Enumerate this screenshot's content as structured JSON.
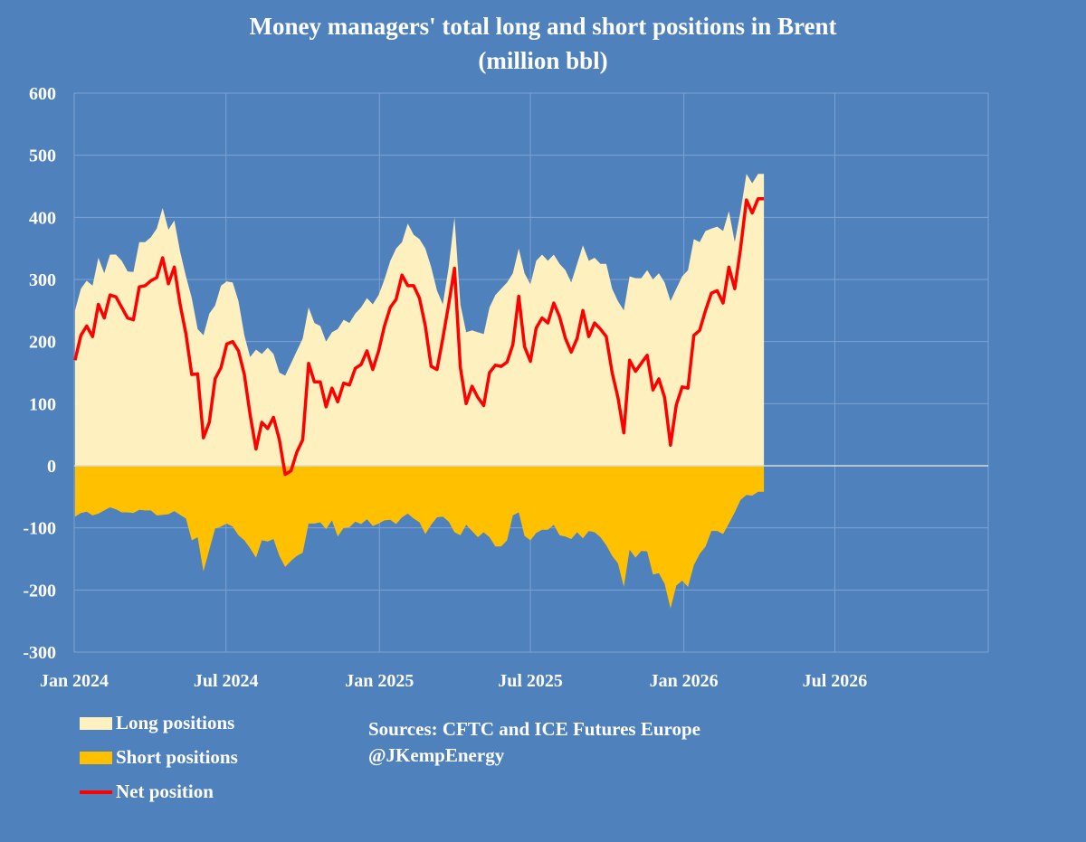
{
  "chart_data": {
    "type": "area",
    "title": "Money managers' total long and short positions in Brent",
    "subtitle": "(million bbl)",
    "ylim": [
      -300,
      600
    ],
    "yticks": [
      600,
      500,
      400,
      300,
      200,
      100,
      0,
      -100,
      -200,
      -300
    ],
    "xlim": [
      "2024-01-01",
      "2027-01-01"
    ],
    "xticks": [
      {
        "date": "2024-01-01",
        "label": "Jan 2024"
      },
      {
        "date": "2024-07-01",
        "label": "Jul 2024"
      },
      {
        "date": "2025-01-01",
        "label": "Jan 2025"
      },
      {
        "date": "2025-07-01",
        "label": "Jul 2025"
      },
      {
        "date": "2026-01-01",
        "label": "Jan 2026"
      },
      {
        "date": "2026-07-01",
        "label": "Jul 2026"
      }
    ],
    "grid": true,
    "legend_placement": "bottom-left",
    "colors": {
      "background": "#4f81bd",
      "long": "#fff0c0",
      "short": "#ffc000",
      "net": "#ff0000",
      "grid": "#7fa2d2"
    },
    "x": [
      "2024-01-02",
      "2024-01-09",
      "2024-01-16",
      "2024-01-23",
      "2024-01-30",
      "2024-02-06",
      "2024-02-13",
      "2024-02-20",
      "2024-02-27",
      "2024-03-05",
      "2024-03-12",
      "2024-03-19",
      "2024-03-26",
      "2024-04-02",
      "2024-04-09",
      "2024-04-16",
      "2024-04-23",
      "2024-04-30",
      "2024-05-07",
      "2024-05-14",
      "2024-05-21",
      "2024-05-28",
      "2024-06-04",
      "2024-06-11",
      "2024-06-18",
      "2024-06-25",
      "2024-07-02",
      "2024-07-09",
      "2024-07-16",
      "2024-07-23",
      "2024-07-30",
      "2024-08-06",
      "2024-08-13",
      "2024-08-20",
      "2024-08-27",
      "2024-09-03",
      "2024-09-10",
      "2024-09-17",
      "2024-09-24",
      "2024-10-01",
      "2024-10-08",
      "2024-10-15",
      "2024-10-22",
      "2024-10-29",
      "2024-11-05",
      "2024-11-12",
      "2024-11-19",
      "2024-11-26",
      "2024-12-03",
      "2024-12-10",
      "2024-12-17",
      "2024-12-24",
      "2024-12-31",
      "2025-01-07",
      "2025-01-14",
      "2025-01-21",
      "2025-01-28",
      "2025-02-04",
      "2025-02-11",
      "2025-02-18",
      "2025-02-25",
      "2025-03-04",
      "2025-03-11",
      "2025-03-18",
      "2025-03-25",
      "2025-04-01",
      "2025-04-08",
      "2025-04-15",
      "2025-04-22",
      "2025-04-29",
      "2025-05-06",
      "2025-05-13",
      "2025-05-20",
      "2025-05-27",
      "2025-06-03",
      "2025-06-10",
      "2025-06-17",
      "2025-06-24",
      "2025-07-01",
      "2025-07-08",
      "2025-07-15",
      "2025-07-22",
      "2025-07-29",
      "2025-08-05",
      "2025-08-12",
      "2025-08-19",
      "2025-08-26",
      "2025-09-02",
      "2025-09-09",
      "2025-09-16",
      "2025-09-23",
      "2025-09-30",
      "2025-10-07",
      "2025-10-14",
      "2025-10-21",
      "2025-10-28",
      "2025-11-04",
      "2025-11-11",
      "2025-11-18",
      "2025-11-25",
      "2025-12-02",
      "2025-12-09",
      "2025-12-16",
      "2025-12-23",
      "2025-12-30",
      "2026-01-06",
      "2026-01-13",
      "2026-01-20",
      "2026-01-27",
      "2026-02-03",
      "2026-02-10",
      "2026-02-17",
      "2026-02-24",
      "2026-03-03",
      "2026-03-10",
      "2026-03-17",
      "2026-03-24",
      "2026-03-31",
      "2026-04-07"
    ],
    "series": [
      {
        "name": "Long positions",
        "values": [
          250,
          285,
          298,
          290,
          335,
          310,
          340,
          340,
          330,
          313,
          312,
          360,
          360,
          368,
          382,
          415,
          380,
          395,
          345,
          305,
          270,
          220,
          210,
          245,
          258,
          290,
          297,
          295,
          265,
          210,
          175,
          187,
          180,
          190,
          180,
          150,
          145,
          165,
          185,
          205,
          255,
          230,
          225,
          200,
          215,
          220,
          235,
          230,
          245,
          255,
          270,
          260,
          275,
          300,
          330,
          350,
          360,
          390,
          372,
          365,
          350,
          320,
          282,
          260,
          320,
          400,
          260,
          215,
          218,
          215,
          212,
          255,
          275,
          285,
          295,
          310,
          350,
          310,
          292,
          330,
          340,
          330,
          340,
          325,
          315,
          295,
          325,
          355,
          330,
          335,
          325,
          325,
          285,
          265,
          250,
          305,
          302,
          302,
          315,
          300,
          310,
          295,
          265,
          285,
          305,
          315,
          365,
          360,
          378,
          382,
          385,
          378,
          410,
          360,
          410,
          470,
          455,
          470,
          470
        ]
      },
      {
        "name": "Short positions",
        "values": [
          -82,
          -76,
          -74,
          -80,
          -77,
          -72,
          -67,
          -70,
          -75,
          -75,
          -76,
          -71,
          -72,
          -72,
          -80,
          -79,
          -78,
          -73,
          -79,
          -85,
          -120,
          -115,
          -170,
          -135,
          -101,
          -98,
          -93,
          -98,
          -112,
          -120,
          -133,
          -148,
          -120,
          -122,
          -118,
          -145,
          -163,
          -153,
          -145,
          -140,
          -93,
          -93,
          -91,
          -102,
          -88,
          -114,
          -100,
          -99,
          -90,
          -94,
          -86,
          -97,
          -93,
          -88,
          -87,
          -94,
          -83,
          -77,
          -85,
          -91,
          -110,
          -95,
          -83,
          -82,
          -90,
          -107,
          -112,
          -95,
          -105,
          -115,
          -107,
          -115,
          -130,
          -130,
          -120,
          -80,
          -75,
          -113,
          -120,
          -108,
          -103,
          -103,
          -95,
          -112,
          -114,
          -118,
          -107,
          -117,
          -105,
          -107,
          -115,
          -128,
          -145,
          -157,
          -195,
          -135,
          -148,
          -137,
          -138,
          -175,
          -173,
          -190,
          -230,
          -193,
          -185,
          -195,
          -160,
          -142,
          -130,
          -105,
          -105,
          -110,
          -93,
          -75,
          -55,
          -47,
          -48,
          -42,
          -42
        ]
      },
      {
        "name": "Net position",
        "values": [
          170,
          210,
          225,
          208,
          260,
          238,
          275,
          272,
          255,
          238,
          235,
          288,
          290,
          298,
          303,
          335,
          293,
          320,
          260,
          212,
          147,
          148,
          45,
          70,
          140,
          158,
          196,
          200,
          185,
          147,
          82,
          27,
          70,
          60,
          78,
          42,
          -14,
          -8,
          22,
          42,
          165,
          135,
          135,
          95,
          125,
          103,
          133,
          130,
          157,
          163,
          185,
          155,
          185,
          225,
          255,
          268,
          307,
          290,
          290,
          270,
          225,
          160,
          155,
          205,
          260,
          318,
          158,
          100,
          128,
          110,
          97,
          150,
          162,
          160,
          167,
          195,
          273,
          192,
          168,
          222,
          238,
          230,
          262,
          240,
          205,
          183,
          205,
          250,
          208,
          230,
          220,
          208,
          150,
          110,
          53,
          170,
          152,
          165,
          178,
          122,
          140,
          110,
          33,
          98,
          127,
          125,
          210,
          218,
          250,
          278,
          282,
          262,
          320,
          285,
          350,
          428,
          407,
          430,
          430
        ]
      }
    ]
  },
  "legend": [
    "Long positions",
    "Short positions",
    "Net position"
  ],
  "sources": "Sources: CFTC and ICE Futures Europe",
  "handle": "@JKempEnergy"
}
